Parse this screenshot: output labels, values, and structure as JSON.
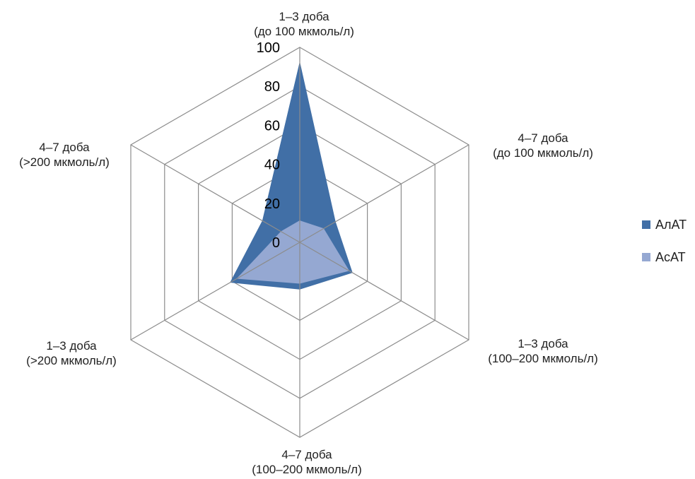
{
  "chart_data": {
    "type": "radar",
    "title": "",
    "categories": [
      [
        "1–3 доба",
        "(до 100 мкмоль/л)"
      ],
      [
        "4–7 доба",
        "(до 100 мкмоль/л)"
      ],
      [
        "1–3 доба",
        "(100–200 мкмоль/л)"
      ],
      [
        "4–7 доба",
        "(100–200 мкмоль/л)"
      ],
      [
        "1–3 доба",
        "(>200 мкмоль/л)"
      ],
      [
        "4–7 доба",
        "(>200 мкмоль/л)"
      ]
    ],
    "ticks": [
      0,
      20,
      40,
      60,
      80,
      100
    ],
    "rlim": [
      0,
      100
    ],
    "grid": true,
    "legend_position": "right",
    "series": [
      {
        "name": "АлАТ",
        "color": "#416fa6",
        "values": [
          92,
          21,
          31,
          24,
          41,
          22
        ]
      },
      {
        "name": "АсАТ",
        "color": "#95a8d2",
        "values": [
          11,
          14,
          29,
          21,
          37,
          11
        ]
      }
    ]
  }
}
